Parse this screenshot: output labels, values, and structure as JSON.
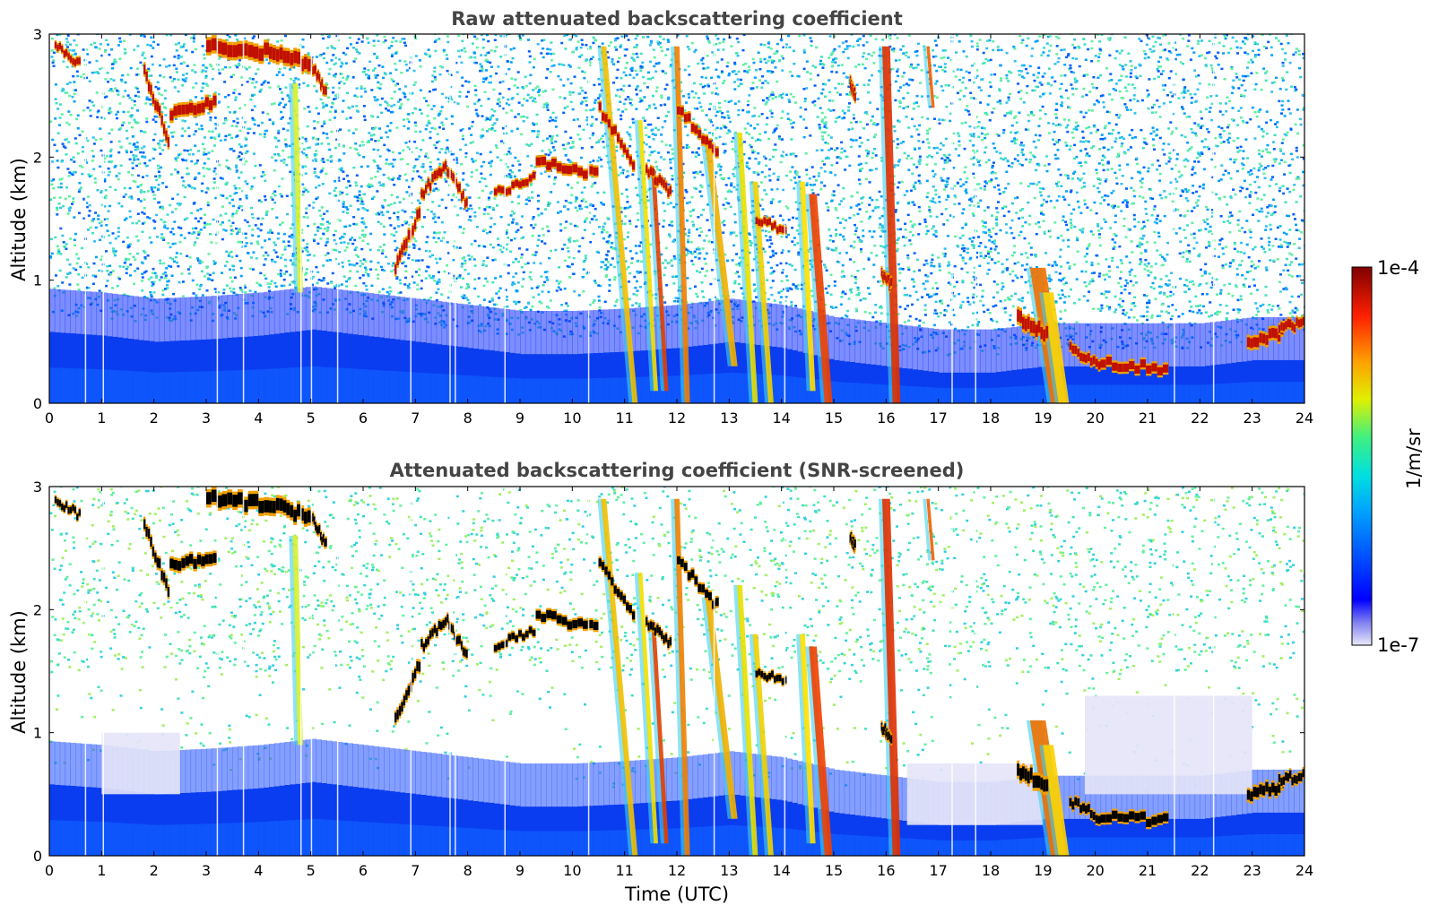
{
  "chart_data": [
    {
      "type": "heatmap",
      "title": "Raw attenuated backscattering coefficient",
      "xlabel": "",
      "ylabel": "Altitude (km)",
      "xlim": [
        0,
        24
      ],
      "ylim": [
        0,
        3
      ],
      "xticks": [
        0,
        1,
        2,
        3,
        4,
        5,
        6,
        7,
        8,
        9,
        10,
        11,
        12,
        13,
        14,
        15,
        16,
        17,
        18,
        19,
        20,
        21,
        22,
        23,
        24
      ],
      "yticks": [
        0,
        1,
        2,
        3
      ],
      "screened": false
    },
    {
      "type": "heatmap",
      "title": "Attenuated backscattering coefficient (SNR-screened)",
      "xlabel": "Time (UTC)",
      "ylabel": "Altitude (km)",
      "xlim": [
        0,
        24
      ],
      "ylim": [
        0,
        3
      ],
      "xticks": [
        0,
        1,
        2,
        3,
        4,
        5,
        6,
        7,
        8,
        9,
        10,
        11,
        12,
        13,
        14,
        15,
        16,
        17,
        18,
        19,
        20,
        21,
        22,
        23,
        24
      ],
      "yticks": [
        0,
        1,
        2,
        3
      ],
      "screened": true
    }
  ],
  "colorbar": {
    "label": "1/m/sr",
    "max_label": "1e-4",
    "min_label": "1e-7",
    "scale": "log",
    "colormap": "jet",
    "range": [
      1e-07,
      0.0001
    ]
  },
  "features": {
    "boundary_layer_top_km": [
      [
        0,
        0.58
      ],
      [
        1,
        0.55
      ],
      [
        2,
        0.5
      ],
      [
        3,
        0.52
      ],
      [
        4,
        0.55
      ],
      [
        5,
        0.6
      ],
      [
        6,
        0.55
      ],
      [
        7,
        0.5
      ],
      [
        8,
        0.45
      ],
      [
        9,
        0.4
      ],
      [
        10,
        0.4
      ],
      [
        11,
        0.42
      ],
      [
        12,
        0.45
      ],
      [
        13,
        0.5
      ],
      [
        14,
        0.45
      ],
      [
        15,
        0.35
      ],
      [
        16,
        0.3
      ],
      [
        17,
        0.25
      ],
      [
        18,
        0.25
      ],
      [
        19,
        0.3
      ],
      [
        20,
        0.3
      ],
      [
        21,
        0.3
      ],
      [
        22,
        0.3
      ],
      [
        23,
        0.35
      ],
      [
        24,
        0.35
      ]
    ],
    "cloud_segments": [
      {
        "t": [
          0.1,
          0.6
        ],
        "alt": [
          2.9,
          2.75
        ],
        "thick": 0.08
      },
      {
        "t": [
          1.8,
          2.3
        ],
        "alt": [
          2.7,
          2.1
        ],
        "thick": 0.12
      },
      {
        "t": [
          2.3,
          3.2
        ],
        "alt": [
          2.35,
          2.45
        ],
        "thick": 0.12
      },
      {
        "t": [
          3.0,
          4.2
        ],
        "alt": [
          2.9,
          2.85
        ],
        "thick": 0.15
      },
      {
        "t": [
          4.2,
          5.0
        ],
        "alt": [
          2.85,
          2.75
        ],
        "thick": 0.15
      },
      {
        "t": [
          5.0,
          5.3
        ],
        "alt": [
          2.75,
          2.5
        ],
        "thick": 0.1
      },
      {
        "t": [
          6.6,
          7.1
        ],
        "alt": [
          1.1,
          1.6
        ],
        "thick": 0.12
      },
      {
        "t": [
          7.1,
          7.6
        ],
        "alt": [
          1.7,
          1.95
        ],
        "thick": 0.1
      },
      {
        "t": [
          7.6,
          8.0
        ],
        "alt": [
          1.9,
          1.6
        ],
        "thick": 0.1
      },
      {
        "t": [
          8.5,
          9.3
        ],
        "alt": [
          1.7,
          1.85
        ],
        "thick": 0.08
      },
      {
        "t": [
          9.3,
          10.5
        ],
        "alt": [
          1.95,
          1.85
        ],
        "thick": 0.1
      },
      {
        "t": [
          10.5,
          11.2
        ],
        "alt": [
          2.4,
          1.9
        ],
        "thick": 0.1
      },
      {
        "t": [
          11.4,
          11.9
        ],
        "alt": [
          1.9,
          1.7
        ],
        "thick": 0.1
      },
      {
        "t": [
          12.0,
          12.8
        ],
        "alt": [
          2.4,
          2.0
        ],
        "thick": 0.1
      },
      {
        "t": [
          13.5,
          14.1
        ],
        "alt": [
          1.5,
          1.4
        ],
        "thick": 0.08
      },
      {
        "t": [
          15.3,
          15.4
        ],
        "alt": [
          2.6,
          2.5
        ],
        "thick": 0.1
      },
      {
        "t": [
          15.9,
          16.1
        ],
        "alt": [
          1.05,
          0.95
        ],
        "thick": 0.1
      },
      {
        "t": [
          18.5,
          19.1
        ],
        "alt": [
          0.7,
          0.55
        ],
        "thick": 0.15
      },
      {
        "t": [
          19.5,
          20.1
        ],
        "alt": [
          0.45,
          0.3
        ],
        "thick": 0.1
      },
      {
        "t": [
          20.1,
          21.4
        ],
        "alt": [
          0.32,
          0.28
        ],
        "thick": 0.1
      },
      {
        "t": [
          22.9,
          23.6
        ],
        "alt": [
          0.48,
          0.58
        ],
        "thick": 0.12
      },
      {
        "t": [
          23.5,
          24.0
        ],
        "alt": [
          0.62,
          0.65
        ],
        "thick": 0.1
      }
    ],
    "precip_streaks": [
      {
        "t0": 4.7,
        "alt0": 2.6,
        "t1": 4.8,
        "alt1": 0.9,
        "w": 0.1,
        "c": "#d8f030"
      },
      {
        "t0": 10.6,
        "alt0": 2.9,
        "t1": 11.2,
        "alt1": 0.0,
        "w": 0.1,
        "c": "#f0c000"
      },
      {
        "t0": 11.3,
        "alt0": 2.3,
        "t1": 11.6,
        "alt1": 0.1,
        "w": 0.08,
        "c": "#f0e000"
      },
      {
        "t0": 11.55,
        "alt0": 1.9,
        "t1": 11.8,
        "alt1": 0.1,
        "w": 0.08,
        "c": "#e04000"
      },
      {
        "t0": 12.0,
        "alt0": 2.9,
        "t1": 12.2,
        "alt1": 0.0,
        "w": 0.1,
        "c": "#f08000"
      },
      {
        "t0": 12.6,
        "alt0": 2.1,
        "t1": 13.1,
        "alt1": 0.3,
        "w": 0.12,
        "c": "#f0b000"
      },
      {
        "t0": 13.2,
        "alt0": 2.2,
        "t1": 13.5,
        "alt1": 0.0,
        "w": 0.1,
        "c": "#e8e000"
      },
      {
        "t0": 13.5,
        "alt0": 1.8,
        "t1": 13.8,
        "alt1": 0.0,
        "w": 0.1,
        "c": "#f0d000"
      },
      {
        "t0": 14.4,
        "alt0": 1.8,
        "t1": 14.6,
        "alt1": 0.1,
        "w": 0.1,
        "c": "#ffe000"
      },
      {
        "t0": 14.6,
        "alt0": 1.7,
        "t1": 14.9,
        "alt1": 0.0,
        "w": 0.15,
        "c": "#f04000"
      },
      {
        "t0": 16.0,
        "alt0": 2.9,
        "t1": 16.2,
        "alt1": 0.0,
        "w": 0.15,
        "c": "#e03000"
      },
      {
        "t0": 16.8,
        "alt0": 2.9,
        "t1": 16.9,
        "alt1": 2.4,
        "w": 0.06,
        "c": "#f06000"
      },
      {
        "t0": 18.9,
        "alt0": 1.1,
        "t1": 19.3,
        "alt1": 0.0,
        "w": 0.3,
        "c": "#f07000"
      },
      {
        "t0": 19.1,
        "alt0": 0.9,
        "t1": 19.4,
        "alt1": 0.0,
        "w": 0.2,
        "c": "#ffd000"
      }
    ]
  }
}
